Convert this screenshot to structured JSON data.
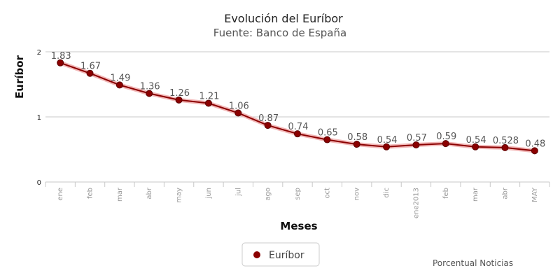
{
  "chart_data": {
    "type": "line",
    "title": "Evolución del Euríbor",
    "subtitle": "Fuente: Banco de España",
    "xlabel": "Meses",
    "ylabel": "Euríbor",
    "categories": [
      "ene",
      "feb",
      "mar",
      "abr",
      "may",
      "jun",
      "jul",
      "ago",
      "sep",
      "oct",
      "nov",
      "dic",
      "ene2013",
      "feb",
      "mar",
      "abr",
      "MAY"
    ],
    "series": [
      {
        "name": "Euríbor",
        "values": [
          1.83,
          1.67,
          1.49,
          1.36,
          1.26,
          1.21,
          1.06,
          0.87,
          0.74,
          0.65,
          0.58,
          0.54,
          0.57,
          0.59,
          0.54,
          0.528,
          0.48
        ],
        "labels": [
          "1.83",
          "1.67",
          "1.49",
          "1.36",
          "1.26",
          "1.21",
          "1.06",
          "0.87",
          "0.74",
          "0.65",
          "0.58",
          "0.54",
          "0.57",
          "0.59",
          "0.54",
          "0.528",
          "0.48"
        ],
        "color": "#8b0000"
      }
    ],
    "yticks": [
      "0",
      "1",
      "2"
    ],
    "ylim": [
      0,
      2
    ],
    "grid": true,
    "legend": "bottom-center"
  },
  "credit": "Porcentual Noticias"
}
